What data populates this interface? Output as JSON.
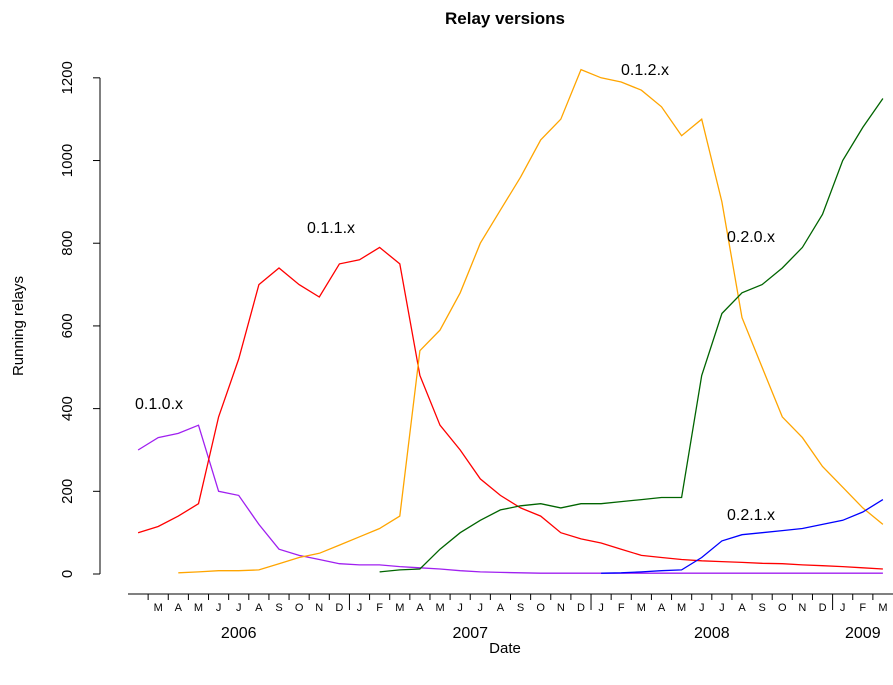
{
  "chart_data": {
    "type": "line",
    "title": "Relay versions",
    "xlabel": "Date",
    "ylabel": "Running relays",
    "x": [
      "2006-02",
      "2006-03",
      "2006-04",
      "2006-05",
      "2006-06",
      "2006-07",
      "2006-08",
      "2006-09",
      "2006-10",
      "2006-11",
      "2006-12",
      "2007-01",
      "2007-02",
      "2007-03",
      "2007-04",
      "2007-05",
      "2007-06",
      "2007-07",
      "2007-08",
      "2007-09",
      "2007-10",
      "2007-11",
      "2007-12",
      "2008-01",
      "2008-02",
      "2008-03",
      "2008-04",
      "2008-05",
      "2008-06",
      "2008-07",
      "2008-08",
      "2008-09",
      "2008-10",
      "2008-11",
      "2008-12",
      "2009-01",
      "2009-02",
      "2009-03"
    ],
    "series": [
      {
        "name": "0.1.0.x",
        "color": "#a020f0",
        "values": [
          300,
          330,
          340,
          360,
          200,
          190,
          120,
          60,
          45,
          35,
          25,
          22,
          22,
          18,
          15,
          12,
          8,
          5,
          4,
          3,
          2,
          2,
          2,
          2,
          2,
          2,
          2,
          2,
          2,
          2,
          2,
          2,
          2,
          2,
          2,
          2,
          2,
          2
        ]
      },
      {
        "name": "0.1.1.x",
        "color": "#ff0000",
        "values": [
          100,
          115,
          140,
          170,
          380,
          520,
          700,
          740,
          700,
          670,
          750,
          760,
          790,
          750,
          480,
          360,
          300,
          230,
          190,
          160,
          140,
          100,
          85,
          75,
          60,
          45,
          40,
          35,
          32,
          30,
          28,
          26,
          25,
          22,
          20,
          18,
          15,
          12
        ]
      },
      {
        "name": "0.1.2.x",
        "color": "#ffa500",
        "values": [
          null,
          null,
          3,
          5,
          8,
          8,
          10,
          25,
          40,
          50,
          70,
          90,
          110,
          140,
          540,
          590,
          680,
          800,
          880,
          960,
          1050,
          1100,
          1220,
          1200,
          1190,
          1170,
          1130,
          1060,
          1100,
          900,
          620,
          500,
          380,
          330,
          260,
          210,
          160,
          120
        ]
      },
      {
        "name": "0.2.0.x",
        "color": "#006400",
        "values": [
          null,
          null,
          null,
          null,
          null,
          null,
          null,
          null,
          null,
          null,
          null,
          null,
          5,
          10,
          12,
          60,
          100,
          130,
          155,
          165,
          170,
          160,
          170,
          170,
          175,
          180,
          185,
          185,
          480,
          630,
          680,
          700,
          740,
          790,
          870,
          1000,
          1080,
          1150
        ]
      },
      {
        "name": "0.2.1.x",
        "color": "#0000ff",
        "values": [
          null,
          null,
          null,
          null,
          null,
          null,
          null,
          null,
          null,
          null,
          null,
          null,
          null,
          null,
          null,
          null,
          null,
          null,
          null,
          null,
          null,
          null,
          null,
          2,
          3,
          5,
          8,
          10,
          40,
          80,
          95,
          100,
          105,
          110,
          120,
          130,
          150,
          180
        ]
      }
    ],
    "xlim": [
      "2006-02",
      "2009-04"
    ],
    "xticks": [
      {
        "value": "2006-03",
        "label": "M"
      },
      {
        "value": "2006-04",
        "label": "A"
      },
      {
        "value": "2006-05",
        "label": "M"
      },
      {
        "value": "2006-06",
        "label": "J"
      },
      {
        "value": "2006-07",
        "label": "J"
      },
      {
        "value": "2006-08",
        "label": "A"
      },
      {
        "value": "2006-09",
        "label": "S"
      },
      {
        "value": "2006-10",
        "label": "O"
      },
      {
        "value": "2006-11",
        "label": "N"
      },
      {
        "value": "2006-12",
        "label": "D"
      },
      {
        "value": "2007-01",
        "label": "J"
      },
      {
        "value": "2007-02",
        "label": "F"
      },
      {
        "value": "2007-03",
        "label": "M"
      },
      {
        "value": "2007-04",
        "label": "A"
      },
      {
        "value": "2007-05",
        "label": "M"
      },
      {
        "value": "2007-06",
        "label": "J"
      },
      {
        "value": "2007-07",
        "label": "J"
      },
      {
        "value": "2007-08",
        "label": "A"
      },
      {
        "value": "2007-09",
        "label": "S"
      },
      {
        "value": "2007-10",
        "label": "O"
      },
      {
        "value": "2007-11",
        "label": "N"
      },
      {
        "value": "2007-12",
        "label": "D"
      },
      {
        "value": "2008-01",
        "label": "J"
      },
      {
        "value": "2008-02",
        "label": "F"
      },
      {
        "value": "2008-03",
        "label": "M"
      },
      {
        "value": "2008-04",
        "label": "A"
      },
      {
        "value": "2008-05",
        "label": "M"
      },
      {
        "value": "2008-06",
        "label": "J"
      },
      {
        "value": "2008-07",
        "label": "J"
      },
      {
        "value": "2008-08",
        "label": "A"
      },
      {
        "value": "2008-09",
        "label": "S"
      },
      {
        "value": "2008-10",
        "label": "O"
      },
      {
        "value": "2008-11",
        "label": "N"
      },
      {
        "value": "2008-12",
        "label": "D"
      },
      {
        "value": "2009-01",
        "label": "J"
      },
      {
        "value": "2009-02",
        "label": "F"
      },
      {
        "value": "2009-03",
        "label": "M"
      }
    ],
    "year_labels": [
      "2006",
      "2007",
      "2008",
      "2009"
    ],
    "ylim": [
      -29,
      1306
    ],
    "yticks": [
      0,
      200,
      400,
      600,
      800,
      1000,
      1200
    ]
  }
}
